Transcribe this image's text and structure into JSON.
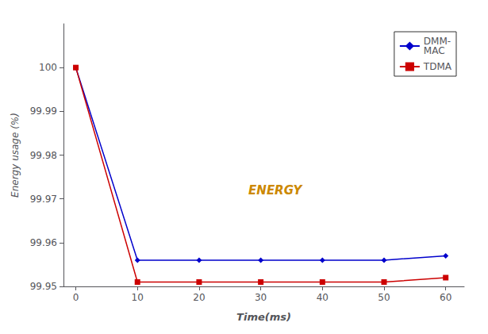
{
  "chart_data": {
    "type": "line",
    "xlabel": "Time(ms)",
    "ylabel": "Energy usage (%)",
    "x": [
      0,
      10,
      20,
      30,
      40,
      50,
      60
    ],
    "series": [
      {
        "name": "DMM-\nMAC",
        "color": "#0000cc",
        "marker": "diamond",
        "line_style": "solid",
        "values": [
          100,
          99.956,
          99.956,
          99.956,
          99.956,
          99.956,
          99.957
        ]
      },
      {
        "name": "TDMA",
        "color": "#cc0000",
        "marker": "square",
        "line_style": "solid",
        "values": [
          100,
          99.951,
          99.951,
          99.951,
          99.951,
          99.951,
          99.952
        ]
      }
    ],
    "xlim": [
      -2,
      63
    ],
    "ylim": [
      99.95,
      100.01
    ],
    "xticks": [
      0,
      10,
      20,
      30,
      40,
      50,
      60
    ],
    "yticks": [
      99.95,
      99.96,
      99.97,
      99.98,
      99.99,
      100
    ],
    "annotations": [
      {
        "text": "ENERGY",
        "x": 28,
        "y": 99.972
      }
    ],
    "legend": "upper right",
    "grid": false
  }
}
